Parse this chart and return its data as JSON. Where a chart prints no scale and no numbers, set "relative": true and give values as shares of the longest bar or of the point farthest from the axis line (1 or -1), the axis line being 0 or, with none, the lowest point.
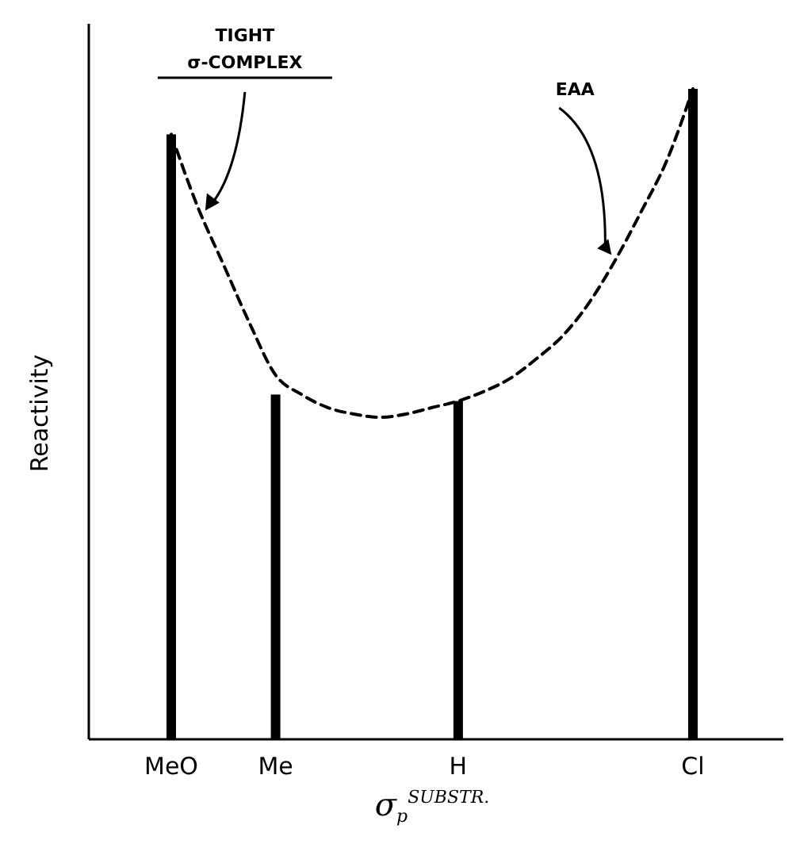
{
  "chart_data": {
    "type": "bar",
    "relative": true,
    "ylabel": "Reactivity",
    "xlabel": "σ$_{p}$$^{SUBSTR.}$",
    "categories": [
      "MeO",
      null,
      null,
      null,
      "Me",
      null,
      null,
      null,
      null,
      null,
      null,
      "H",
      null,
      null,
      null,
      null,
      null,
      null,
      null,
      null,
      "Cl"
    ],
    "series": [
      {
        "color": "#000000",
        "values": [
          0.93,
          null,
          null,
          null,
          0.53,
          null,
          null,
          null,
          null,
          null,
          null,
          0.52,
          null,
          null,
          null,
          null,
          null,
          null,
          null,
          null,
          1.0
        ]
      },
      {
        "type": "line",
        "color": "#000000",
        "line_style": "dashed",
        "values": [
          0.93,
          0.82,
          0.73,
          0.64,
          0.56,
          0.53,
          0.51,
          0.5,
          0.495,
          0.5,
          0.51,
          0.52,
          0.535,
          0.555,
          0.585,
          0.62,
          0.67,
          0.735,
          0.81,
          0.89,
          1.0
        ]
      }
    ],
    "annotations": [
      "TIGHT σ-COMPLEX",
      "EAA"
    ]
  }
}
